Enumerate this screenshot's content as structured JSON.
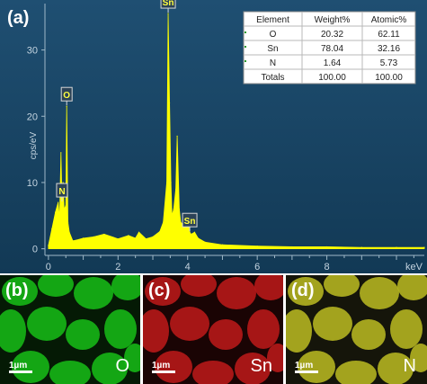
{
  "chart_data": {
    "type": "line",
    "panel_label": "(a)",
    "ylabel": "cps/eV",
    "x_unit": "keV",
    "xlim": [
      -0.1,
      10.8
    ],
    "ylim": [
      -1,
      37
    ],
    "x_ticks": [
      "0",
      "2",
      "4",
      "6",
      "8"
    ],
    "y_ticks": [
      "0",
      "10",
      "20",
      "30"
    ],
    "series": [
      {
        "color": "#ffff00",
        "x": [
          0.0,
          0.1,
          0.2,
          0.28,
          0.32,
          0.36,
          0.39,
          0.42,
          0.45,
          0.5,
          0.525,
          0.56,
          0.6,
          0.7,
          0.8,
          1.0,
          1.3,
          1.6,
          2.0,
          2.3,
          2.5,
          2.6,
          2.8,
          3.0,
          3.2,
          3.3,
          3.4,
          3.44,
          3.48,
          3.52,
          3.55,
          3.6,
          3.66,
          3.7,
          3.76,
          3.8,
          3.9,
          4.0,
          4.06,
          4.1,
          4.2,
          4.3,
          4.5,
          5.0,
          6.0,
          7.0,
          8.0,
          9.0,
          10.0,
          10.8
        ],
        "y": [
          0.5,
          3.0,
          5.5,
          7.0,
          4.5,
          14.5,
          7.0,
          10.0,
          6.0,
          6.5,
          21.5,
          4.0,
          2.5,
          1.2,
          1.3,
          1.6,
          1.8,
          2.2,
          1.5,
          2.0,
          1.6,
          2.5,
          1.5,
          1.8,
          2.6,
          4.0,
          10.0,
          35.5,
          22.0,
          10.0,
          5.0,
          6.0,
          9.0,
          17.0,
          6.0,
          4.0,
          3.5,
          5.0,
          2.5,
          2.2,
          2.5,
          1.6,
          1.0,
          0.6,
          0.4,
          0.3,
          0.3,
          0.2,
          0.2,
          0.2
        ]
      }
    ],
    "peak_labels": [
      {
        "text": "O",
        "x": 0.525,
        "y": 21.5
      },
      {
        "text": "N",
        "x": 0.39,
        "y": 7.0
      },
      {
        "text": "Sn",
        "x": 3.44,
        "y": 35.5
      },
      {
        "text": "Sn",
        "x": 4.06,
        "y": 2.5
      }
    ],
    "table": {
      "headers": [
        "Element",
        "Weight%",
        "Atomic%"
      ],
      "rows": [
        [
          "O",
          "20.32",
          "62.11"
        ],
        [
          "Sn",
          "78.04",
          "32.16"
        ],
        [
          "N",
          "1.64",
          "5.73"
        ],
        [
          "Totals",
          "100.00",
          "100.00"
        ]
      ]
    }
  },
  "maps": [
    {
      "label": "(b)",
      "element": "O",
      "scale": "1µm",
      "color": "#18c018",
      "bg": "#051a05"
    },
    {
      "label": "(c)",
      "element": "Sn",
      "scale": "1µm",
      "color": "#c01a1a",
      "bg": "#1a0404"
    },
    {
      "label": "(d)",
      "element": "N",
      "scale": "1µm",
      "color": "#bcbc22",
      "bg": "#15150a"
    }
  ]
}
